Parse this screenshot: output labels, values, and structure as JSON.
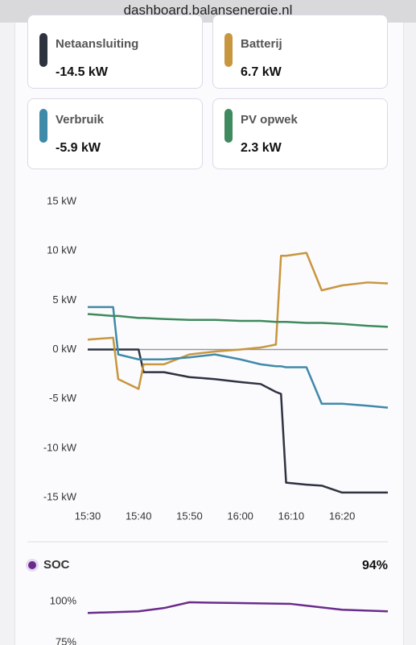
{
  "browser": {
    "url": "dashboard.balansenergie.nl"
  },
  "cards": [
    {
      "name": "Netaansluiting",
      "value": "-14.5 kW",
      "color": "#2e3340"
    },
    {
      "name": "Batterij",
      "value": "6.7 kW",
      "color": "#c8963e"
    },
    {
      "name": "Verbruik",
      "value": "-5.9 kW",
      "color": "#3f8aa8"
    },
    {
      "name": "PV opwek",
      "value": "2.3 kW",
      "color": "#3f8a5e"
    }
  ],
  "soc_current": "94%",
  "chart_data": [
    {
      "type": "line",
      "x": [
        "15:30",
        "15:35",
        "15:36",
        "15:40",
        "15:41",
        "15:45",
        "15:50",
        "15:55",
        "16:00",
        "16:04",
        "16:07",
        "16:08",
        "16:09",
        "16:13",
        "16:16",
        "16:20",
        "16:25",
        "16:29"
      ],
      "xlim": [
        "15:30",
        "16:29"
      ],
      "xticks": [
        "15:30",
        "15:40",
        "15:50",
        "16:00",
        "16:10",
        "16:20"
      ],
      "ylim": [
        -15,
        15
      ],
      "yticks": [
        {
          "value": 15,
          "label": "15 kW"
        },
        {
          "value": 10,
          "label": "10 kW"
        },
        {
          "value": 5,
          "label": "5 kW"
        },
        {
          "value": 0,
          "label": "0 kW"
        },
        {
          "value": -5,
          "label": "-5 kW"
        },
        {
          "value": -10,
          "label": "-10 kW"
        },
        {
          "value": -15,
          "label": "-15 kW"
        }
      ],
      "zero_line": true,
      "series": [
        {
          "name": "Netaansluiting",
          "color": "#2e3340",
          "values": [
            0,
            0,
            0,
            0,
            -2.3,
            -2.3,
            -2.8,
            -3.0,
            -3.3,
            -3.5,
            -4.3,
            -4.5,
            -13.5,
            -13.7,
            -13.8,
            -14.5,
            -14.5,
            -14.5
          ]
        },
        {
          "name": "Batterij",
          "color": "#c8963e",
          "values": [
            1.0,
            1.2,
            -3.0,
            -4.0,
            -1.5,
            -1.5,
            -0.5,
            -0.2,
            0.0,
            0.2,
            0.5,
            9.5,
            9.5,
            9.8,
            6.0,
            6.5,
            6.8,
            6.7
          ]
        },
        {
          "name": "Verbruik",
          "color": "#3f8aa8",
          "values": [
            4.3,
            4.3,
            -0.5,
            -1.0,
            -1.0,
            -1.0,
            -0.8,
            -0.5,
            -1.0,
            -1.5,
            -1.7,
            -1.7,
            -1.8,
            -1.8,
            -5.5,
            -5.5,
            -5.7,
            -5.9
          ]
        },
        {
          "name": "PV opwek",
          "color": "#3f8a5e",
          "values": [
            3.6,
            3.4,
            3.4,
            3.2,
            3.2,
            3.1,
            3.0,
            3.0,
            2.9,
            2.9,
            2.8,
            2.8,
            2.8,
            2.7,
            2.7,
            2.6,
            2.4,
            2.3
          ]
        }
      ]
    },
    {
      "type": "line",
      "x": [
        "15:30",
        "15:40",
        "15:45",
        "15:50",
        "16:00",
        "16:10",
        "16:20",
        "16:29"
      ],
      "xlim": [
        "15:30",
        "16:29"
      ],
      "ylim": [
        75,
        100
      ],
      "yticks": [
        {
          "value": 100,
          "label": "100%"
        },
        {
          "value": 75,
          "label": "75%"
        }
      ],
      "series": [
        {
          "name": "SOC",
          "color": "#6a2c8c",
          "values": [
            93,
            94,
            96,
            99.5,
            99,
            98.5,
            95,
            94
          ]
        }
      ]
    }
  ]
}
